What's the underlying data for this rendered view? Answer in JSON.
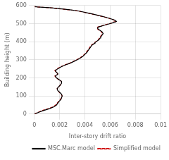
{
  "chart_data": {
    "type": "line",
    "xlabel": "Inter-story drift ratio",
    "ylabel": "Building height (m)",
    "xlim": [
      0,
      0.01
    ],
    "ylim": [
      0,
      600
    ],
    "xticks": [
      0,
      0.002,
      0.004,
      0.006,
      0.008,
      0.01
    ],
    "yticks": [
      0,
      100,
      200,
      300,
      400,
      500,
      600
    ],
    "grid": true,
    "legend": "lower right",
    "series": [
      {
        "name": "MSC.Marc model",
        "color": "#000000",
        "line_style": "solid",
        "x": [
          0.0,
          0.00035,
          0.00075,
          0.0012,
          0.00155,
          0.00175,
          0.00185,
          0.00195,
          0.0021,
          0.00215,
          0.0022,
          0.00215,
          0.002,
          0.00185,
          0.0018,
          0.0019,
          0.00205,
          0.00215,
          0.00215,
          0.00205,
          0.00195,
          0.00185,
          0.00175,
          0.00165,
          0.00175,
          0.00185,
          0.00185,
          0.00175,
          0.00165,
          0.00185,
          0.0021,
          0.0024,
          0.0028,
          0.0031,
          0.0034,
          0.00365,
          0.00385,
          0.004,
          0.00415,
          0.00425,
          0.00435,
          0.00445,
          0.00455,
          0.00465,
          0.00475,
          0.0048,
          0.0049,
          0.005,
          0.0051,
          0.00515,
          0.0052,
          0.00525,
          0.0053,
          0.00535,
          0.0054,
          0.00545,
          0.0054,
          0.00535,
          0.00525,
          0.00515,
          0.00505,
          0.005,
          0.00505,
          0.00515,
          0.0053,
          0.00545,
          0.0056,
          0.00575,
          0.0059,
          0.006,
          0.0061,
          0.0062,
          0.00625,
          0.00635,
          0.00645,
          0.0065,
          0.0064,
          0.00615,
          0.0059,
          0.0056,
          0.00525,
          0.0049,
          0.00455,
          0.00415,
          0.00375,
          0.0033,
          0.0028,
          0.0023,
          0.00175,
          0.0012,
          0.0007,
          0.00025,
          5e-05
        ],
        "values": [
          0,
          10,
          20,
          30,
          40,
          50,
          60,
          70,
          80,
          90,
          100,
          110,
          120,
          130,
          140,
          150,
          160,
          170,
          180,
          185,
          190,
          195,
          200,
          210,
          215,
          220,
          225,
          230,
          240,
          250,
          260,
          270,
          280,
          290,
          300,
          310,
          320,
          330,
          340,
          350,
          360,
          370,
          380,
          385,
          390,
          395,
          400,
          405,
          410,
          415,
          420,
          425,
          430,
          435,
          440,
          445,
          450,
          455,
          460,
          465,
          470,
          475,
          480,
          483,
          486,
          489,
          492,
          495,
          498,
          500,
          502,
          504,
          506,
          508,
          510,
          512,
          518,
          524,
          530,
          536,
          542,
          548,
          554,
          560,
          566,
          572,
          576,
          580,
          584,
          588,
          590,
          592,
          594
        ]
      },
      {
        "name": "Simplified model",
        "color": "#cc0000",
        "line_style": "dashed",
        "x": [
          0.0,
          0.0003,
          0.00065,
          0.0011,
          0.00148,
          0.00168,
          0.0018,
          0.00192,
          0.00205,
          0.00213,
          0.0022,
          0.00213,
          0.00198,
          0.00185,
          0.0018,
          0.00192,
          0.00205,
          0.00215,
          0.00215,
          0.00205,
          0.00193,
          0.00183,
          0.00173,
          0.00162,
          0.00172,
          0.00183,
          0.00183,
          0.00173,
          0.00162,
          0.0018,
          0.00205,
          0.00235,
          0.00275,
          0.00305,
          0.00335,
          0.0036,
          0.0038,
          0.00396,
          0.0041,
          0.0042,
          0.0043,
          0.0044,
          0.0045,
          0.0046,
          0.0047,
          0.00476,
          0.00486,
          0.00496,
          0.00506,
          0.0051,
          0.00516,
          0.0052,
          0.00525,
          0.0053,
          0.00535,
          0.0054,
          0.00535,
          0.0053,
          0.0052,
          0.0051,
          0.005,
          0.00495,
          0.005,
          0.0051,
          0.00524,
          0.00539,
          0.00554,
          0.00569,
          0.00584,
          0.00596,
          0.00606,
          0.00616,
          0.00618,
          0.00626,
          0.00638,
          0.00645,
          0.00638,
          0.00613,
          0.00587,
          0.00556,
          0.0052,
          0.00485,
          0.0045,
          0.0041,
          0.0037,
          0.00325,
          0.00275,
          0.00225,
          0.0017,
          0.00115,
          0.00065,
          0.00022,
          3e-05
        ],
        "values": [
          0,
          10,
          20,
          30,
          40,
          50,
          60,
          70,
          80,
          90,
          100,
          110,
          120,
          130,
          140,
          150,
          160,
          170,
          180,
          185,
          190,
          195,
          200,
          210,
          215,
          220,
          225,
          230,
          240,
          250,
          260,
          270,
          280,
          290,
          300,
          310,
          320,
          330,
          340,
          350,
          360,
          370,
          380,
          385,
          390,
          395,
          400,
          405,
          410,
          415,
          420,
          425,
          430,
          435,
          440,
          445,
          450,
          455,
          460,
          465,
          470,
          475,
          480,
          483,
          486,
          489,
          492,
          495,
          498,
          500,
          502,
          504,
          506,
          508,
          510,
          512,
          518,
          524,
          530,
          536,
          542,
          548,
          554,
          560,
          566,
          572,
          576,
          580,
          584,
          588,
          590,
          592,
          594
        ]
      }
    ]
  }
}
